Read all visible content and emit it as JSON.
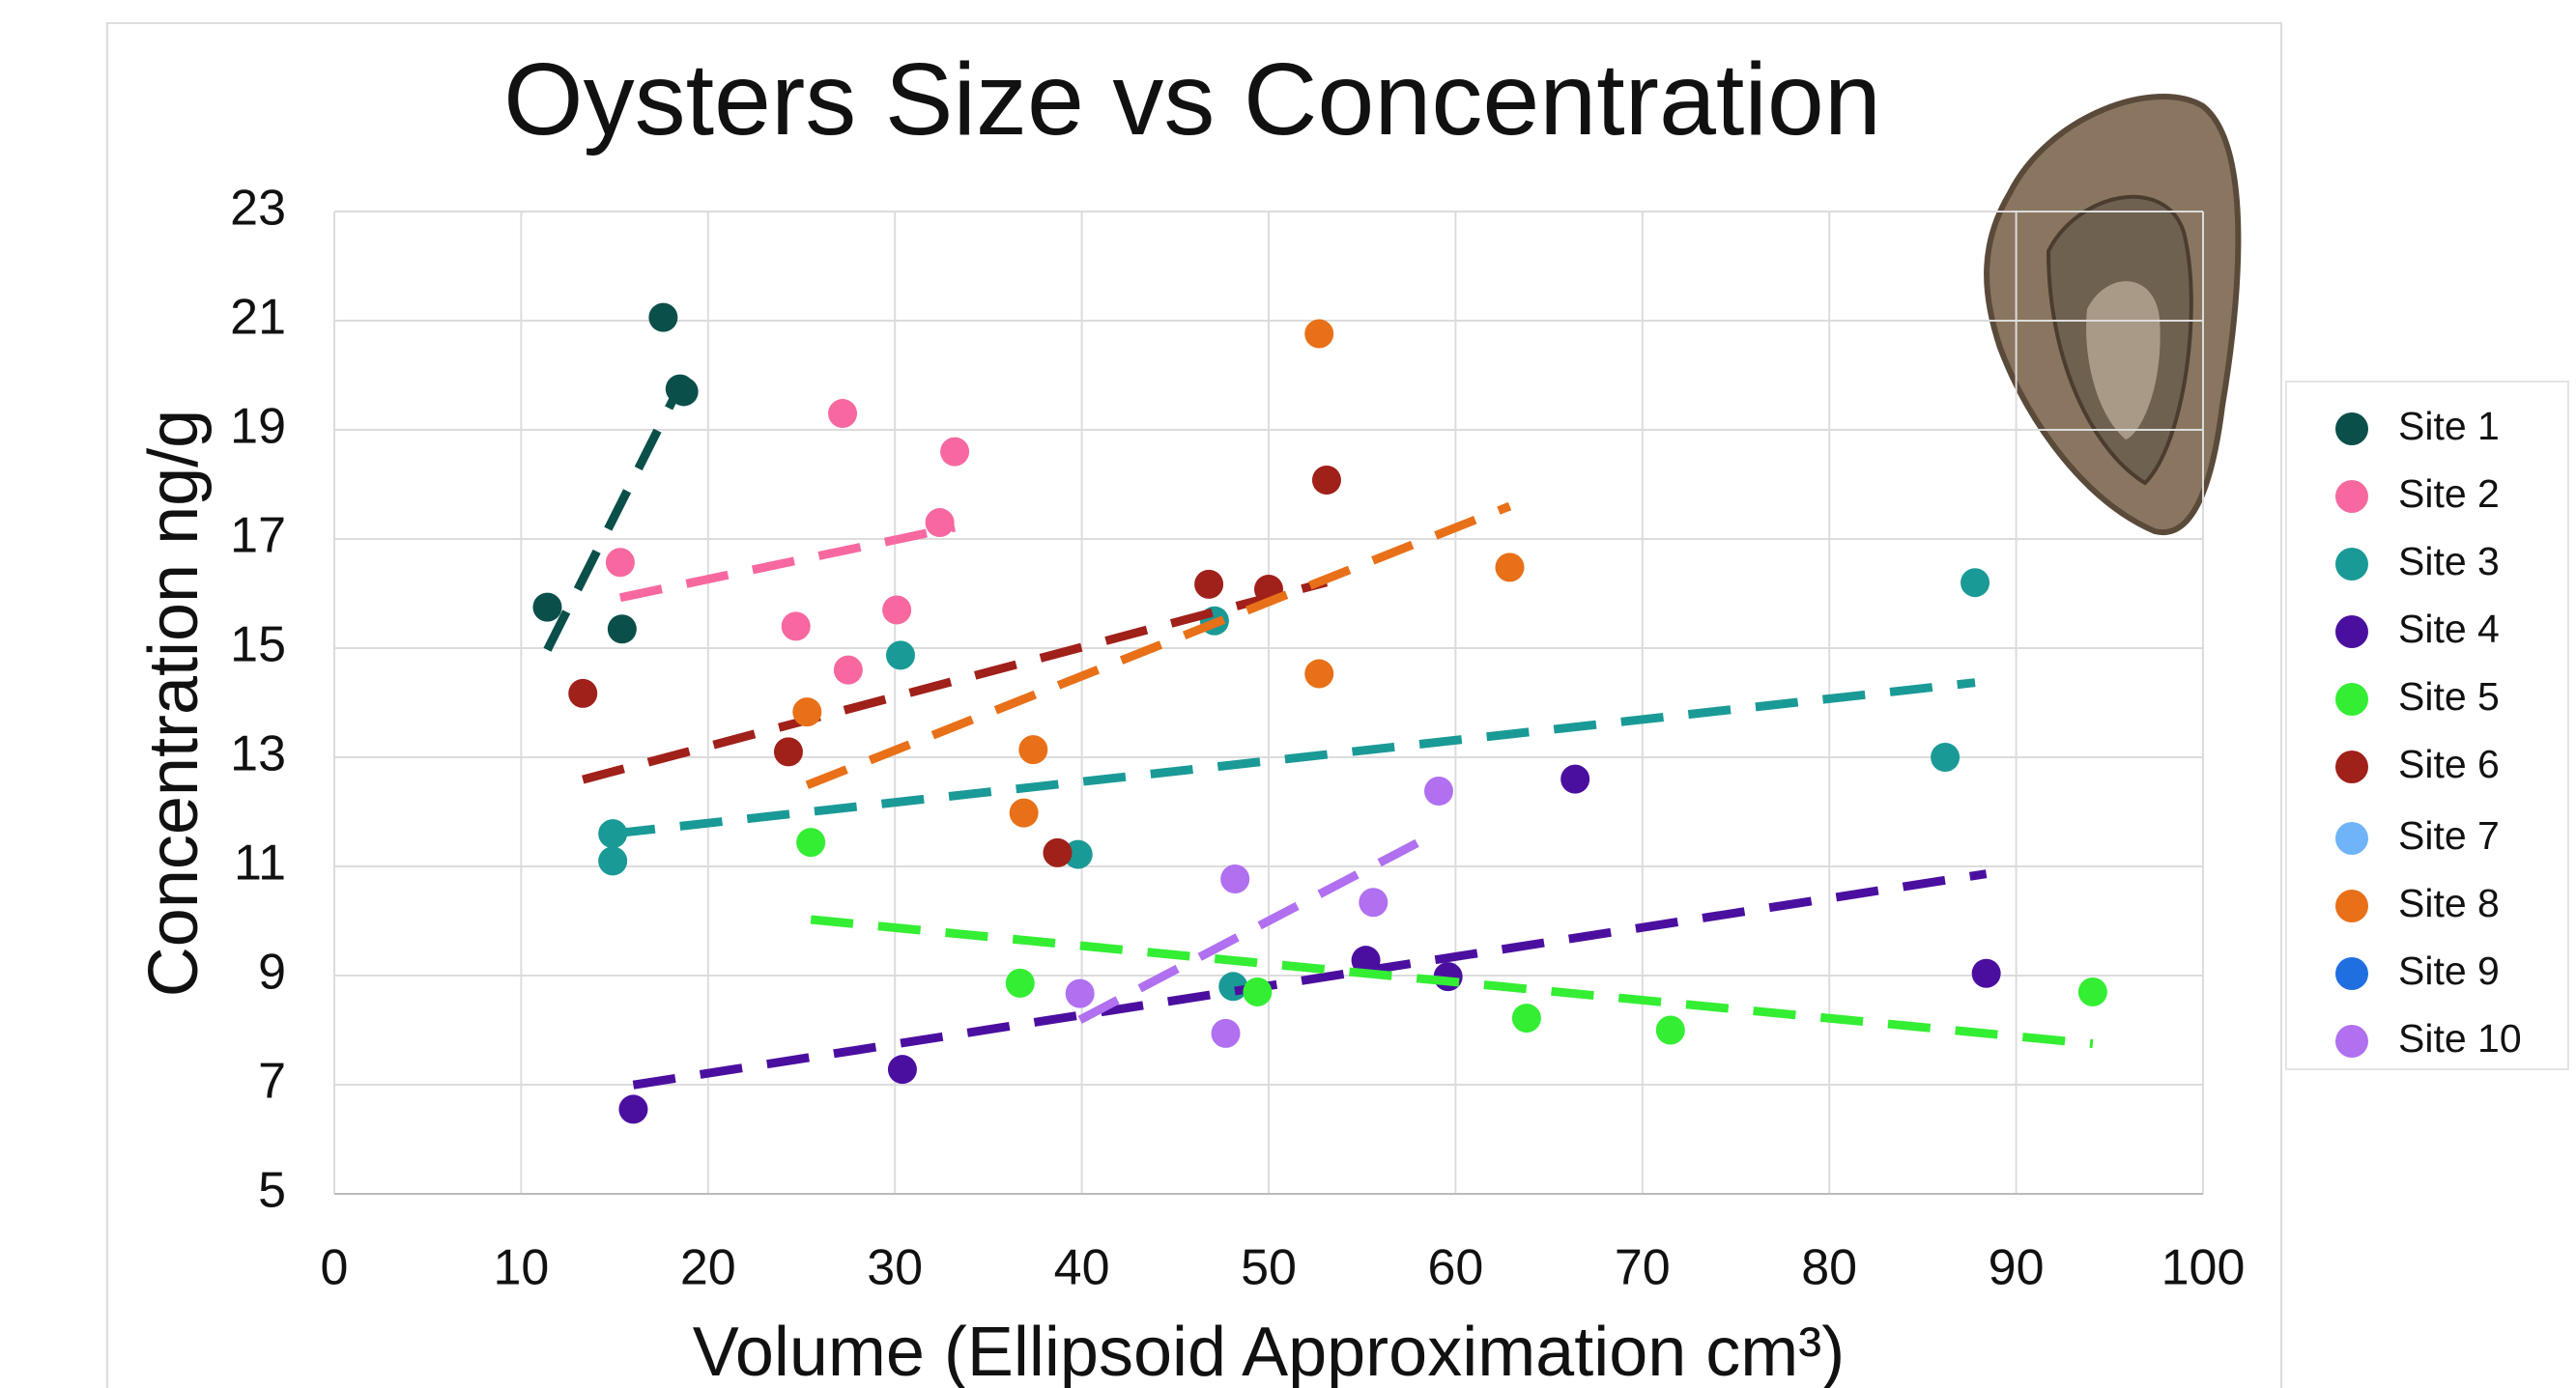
{
  "chart_data": {
    "type": "scatter",
    "title": "Oysters Size vs Concentration",
    "x_label": "Volume (Ellipsoid Approximation cm³)",
    "y_label": "Concentration ng/g",
    "xlim": [
      0,
      100
    ],
    "xticks": [
      0,
      10,
      20,
      30,
      40,
      50,
      60,
      70,
      80,
      90,
      100
    ],
    "ylim": [
      5,
      23
    ],
    "yticks": [
      5,
      7,
      9,
      11,
      13,
      15,
      17,
      19,
      21,
      23
    ],
    "grid": true,
    "trendline": true,
    "legend": "right",
    "series": [
      {
        "name": "Site 1",
        "color": "#0b4f4a",
        "x": [
          11.4,
          17.6,
          18.5,
          15.4,
          18.7
        ],
        "y": [
          15.75,
          21.06,
          19.75,
          15.35,
          19.7
        ]
      },
      {
        "name": "Site 2",
        "color": "#f768a1",
        "x": [
          15.3,
          27.2,
          33.2,
          32.4,
          24.7,
          27.5,
          30.1
        ],
        "y": [
          16.57,
          19.3,
          18.6,
          17.3,
          15.4,
          14.6,
          15.7
        ]
      },
      {
        "name": "Site 3",
        "color": "#1a9a96",
        "x": [
          14.9,
          14.9,
          30.3,
          39.8,
          47.1,
          48.1,
          87.8,
          86.2
        ],
        "y": [
          11.6,
          11.1,
          14.87,
          11.22,
          15.5,
          8.8,
          16.2,
          13.0
        ]
      },
      {
        "name": "Site 4",
        "color": "#4b0fa0",
        "x": [
          16.0,
          30.4,
          55.2,
          59.6,
          66.4,
          88.4
        ],
        "y": [
          6.55,
          7.28,
          9.28,
          8.98,
          12.6,
          9.04
        ]
      },
      {
        "name": "Site 5",
        "color": "#33ee33",
        "x": [
          25.5,
          36.7,
          49.4,
          63.8,
          71.5,
          94.1
        ],
        "y": [
          11.44,
          8.86,
          8.7,
          8.22,
          8.0,
          8.7
        ]
      },
      {
        "name": "Site 6",
        "color": "#a0201a",
        "x": [
          13.3,
          24.3,
          38.7,
          46.8,
          50.0,
          53.1
        ],
        "y": [
          14.17,
          13.1,
          11.25,
          16.17,
          16.08,
          18.08
        ]
      },
      {
        "name": "Site 7",
        "color": "#6fb4f8",
        "x": [],
        "y": []
      },
      {
        "name": "Site 8",
        "color": "#e87018",
        "x": [
          52.7,
          25.3,
          37.4,
          36.9,
          52.7,
          62.9
        ],
        "y": [
          20.76,
          13.83,
          13.14,
          11.98,
          14.53,
          16.48
        ]
      },
      {
        "name": "Site 9",
        "color": "#1f6fe0",
        "x": [],
        "y": []
      },
      {
        "name": "Site 10",
        "color": "#b070f0",
        "x": [
          39.9,
          47.7,
          48.2,
          55.6,
          59.1
        ],
        "y": [
          8.67,
          7.94,
          10.77,
          10.34,
          12.38
        ]
      }
    ]
  }
}
